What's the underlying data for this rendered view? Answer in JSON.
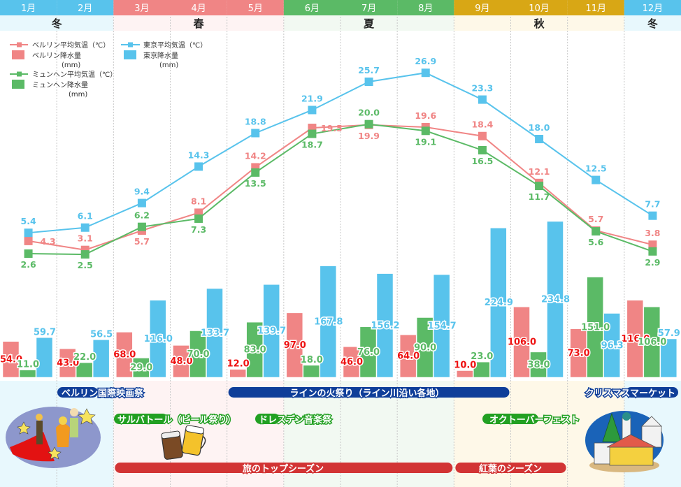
{
  "colors": {
    "berlin": "#f08585",
    "munich": "#5bba66",
    "tokyo": "#58c3ec",
    "berlin_bar_label": "#ee1111",
    "winter_header": "#58c3ec",
    "spring_header": "#f08585",
    "summer_header": "#5bba66",
    "autumn_header": "#d8a715",
    "winter_bg": "#e8f8fd",
    "spring_bg": "#fef3f3",
    "summer_bg": "#f2f9f2",
    "autumn_bg": "#fef8e8",
    "event_blue": "#0f3e99",
    "event_green": "#22a022",
    "event_red": "#d23434"
  },
  "months": [
    "1月",
    "2月",
    "3月",
    "4月",
    "5月",
    "6月",
    "7月",
    "8月",
    "9月",
    "10月",
    "11月",
    "12月"
  ],
  "seasons": [
    {
      "label": "冬",
      "start": 1,
      "end": 2,
      "key": "winter"
    },
    {
      "label": "春",
      "start": 3,
      "end": 5,
      "key": "spring"
    },
    {
      "label": "夏",
      "start": 6,
      "end": 8,
      "key": "summer"
    },
    {
      "label": "秋",
      "start": 9,
      "end": 11,
      "key": "autumn"
    },
    {
      "label": "冬",
      "start": 12,
      "end": 12,
      "key": "winter"
    }
  ],
  "legend": {
    "berlin_temp": "ベルリン平均気温（℃）",
    "berlin_precip": "ベルリン降水量",
    "berlin_precip_unit": "(mm)",
    "munich_temp": "ミュンヘン平均気温（℃）",
    "munich_precip": "ミュンヘン降水量",
    "munich_precip_unit": "(mm)",
    "tokyo_temp": "東京平均気温（℃）",
    "tokyo_precip": "東京降水量",
    "tokyo_precip_unit": "(mm)"
  },
  "chart_data": {
    "type": "bar+line",
    "categories": [
      "1月",
      "2月",
      "3月",
      "4月",
      "5月",
      "6月",
      "7月",
      "8月",
      "9月",
      "10月",
      "11月",
      "12月"
    ],
    "bar_series": [
      {
        "name": "ベルリン降水量 (mm)",
        "key": "berlin",
        "values": [
          54.0,
          43.0,
          68.0,
          48.0,
          12.0,
          97.0,
          46.0,
          64.0,
          10.0,
          106.0,
          73.0,
          116.0
        ]
      },
      {
        "name": "ミュンヘン降水量 (mm)",
        "key": "munich",
        "values": [
          11.0,
          22.0,
          29.0,
          70.0,
          83.0,
          18.0,
          76.0,
          90.0,
          23.0,
          38.0,
          151.0,
          106.0
        ]
      },
      {
        "name": "東京降水量 (mm)",
        "key": "tokyo",
        "values": [
          59.7,
          56.5,
          116.0,
          133.7,
          139.7,
          167.8,
          156.2,
          154.7,
          224.9,
          234.8,
          96.3,
          57.9
        ]
      }
    ],
    "line_series": [
      {
        "name": "ベルリン平均気温（℃）",
        "key": "berlin",
        "values": [
          4.3,
          3.1,
          5.7,
          8.1,
          14.2,
          19.5,
          19.9,
          19.6,
          18.4,
          12.1,
          5.7,
          3.8
        ]
      },
      {
        "name": "ミュンヘン平均気温（℃）",
        "key": "munich",
        "values": [
          2.6,
          2.5,
          6.2,
          7.3,
          13.5,
          18.7,
          20.0,
          19.1,
          16.5,
          11.7,
          5.6,
          2.9
        ]
      },
      {
        "name": "東京平均気温（℃）",
        "key": "tokyo",
        "values": [
          5.4,
          6.1,
          9.4,
          14.3,
          18.8,
          21.9,
          25.7,
          26.9,
          23.3,
          18.0,
          12.5,
          7.7
        ]
      }
    ],
    "precip_range_mm": [
      0,
      300
    ],
    "temp_range_c": [
      -2,
      30
    ],
    "grid": "vertical-dashed",
    "legend_position": "top-left"
  },
  "events": [
    {
      "label": "ベルリン国際映画祭",
      "color": "blue",
      "start": 2,
      "end": 3,
      "row": 0,
      "align": "left"
    },
    {
      "label": "ラインの火祭り（ライン川沿い各地）",
      "color": "blue",
      "start": 5,
      "end": 9,
      "row": 0,
      "align": "mid"
    },
    {
      "label": "クリスマスマーケット",
      "color": "blue",
      "start": 11,
      "end": 12,
      "row": 0,
      "align": "right"
    },
    {
      "label": "サルバトール（ビール祭り）",
      "color": "green",
      "start": 3,
      "end": 4,
      "row": 1,
      "align": "left"
    },
    {
      "label": "ドレスデン音楽祭",
      "color": "green",
      "start": 5,
      "end": 6,
      "row": 1,
      "align": "right"
    },
    {
      "label": "オクトーバーフェスト",
      "color": "green",
      "start": 9,
      "end": 11,
      "row": 1,
      "align": "mid"
    },
    {
      "label": "旅のトップシーズン",
      "color": "red",
      "start": 3,
      "end": 8,
      "row": 2,
      "align": "mid"
    },
    {
      "label": "紅葉のシーズン",
      "color": "red",
      "start": 9,
      "end": 10,
      "row": 2,
      "align": "mid"
    }
  ],
  "illustrations": [
    "film-festival-illustration",
    "beer-mugs-illustration",
    "christmas-market-illustration"
  ]
}
